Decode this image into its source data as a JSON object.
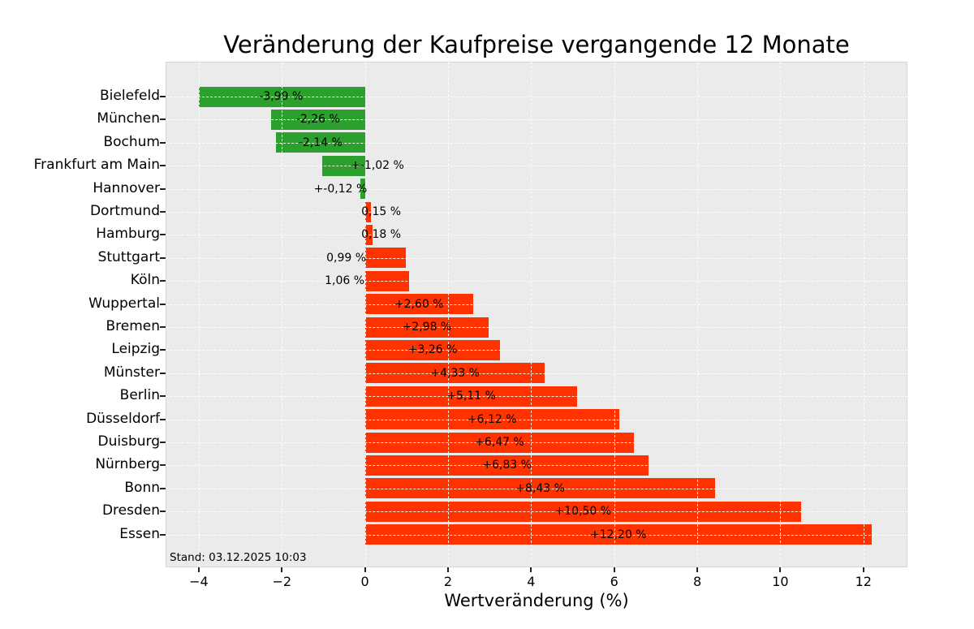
{
  "chart_data": {
    "type": "bar",
    "orientation": "horizontal",
    "title": "Veränderung der Kaufpreise vergangende 12 Monate",
    "xlabel": "Wertveränderung (%)",
    "annotation": "Stand: 03.12.2025 10:03",
    "categories": [
      "Bielefeld",
      "München",
      "Bochum",
      "Frankfurt am Main",
      "Hannover",
      "Dortmund",
      "Hamburg",
      "Stuttgart",
      "Köln",
      "Wuppertal",
      "Bremen",
      "Leipzig",
      "Münster",
      "Berlin",
      "Düsseldorf",
      "Duisburg",
      "Nürnberg",
      "Bonn",
      "Dresden",
      "Essen"
    ],
    "values": [
      -3.99,
      -2.26,
      -2.14,
      -1.02,
      -0.12,
      0.15,
      0.18,
      0.99,
      1.06,
      2.6,
      2.98,
      3.26,
      4.33,
      5.11,
      6.12,
      6.47,
      6.83,
      8.43,
      10.5,
      12.2
    ],
    "bar_labels": [
      "-3,99 %",
      "-2,26 %",
      "-2,14 %",
      "+-1,02 %",
      "+-0,12 %",
      "0,15 %",
      "0,18 %",
      "0,99 %",
      "1,06 %",
      "+2,60 %",
      "+2,98 %",
      "+3,26 %",
      "+4,33 %",
      "+5,11 %",
      "+6,12 %",
      "+6,47 %",
      "+6,83 %",
      "+8,43 %",
      "+10,50 %",
      "+12,20 %"
    ],
    "bar_label_x": [
      -2.02,
      -1.13,
      -1.07,
      0.3,
      -0.59,
      0.39,
      0.39,
      -0.45,
      -0.49,
      1.3,
      1.49,
      1.63,
      2.17,
      2.56,
      3.06,
      3.24,
      3.42,
      4.22,
      5.25,
      6.1
    ],
    "xlim": [
      -4.8,
      13.06
    ],
    "x_ticks": [
      -4,
      -2,
      0,
      2,
      4,
      6,
      8,
      10,
      12
    ],
    "x_tick_labels": [
      "−4",
      "−2",
      "0",
      "2",
      "4",
      "6",
      "8",
      "10",
      "12"
    ],
    "grid": {
      "visible": true,
      "style": "dashed",
      "axes": "both",
      "drawn_over_bars": true
    },
    "legend": null,
    "colors": {
      "negative_bar": "#2ca02c",
      "positive_bar": "#ff3300",
      "plot_background": "#ebebeb",
      "figure_background": "#ffffff",
      "grid_line": "rgba(255,255,255,0.9)",
      "text": "#000000"
    }
  }
}
